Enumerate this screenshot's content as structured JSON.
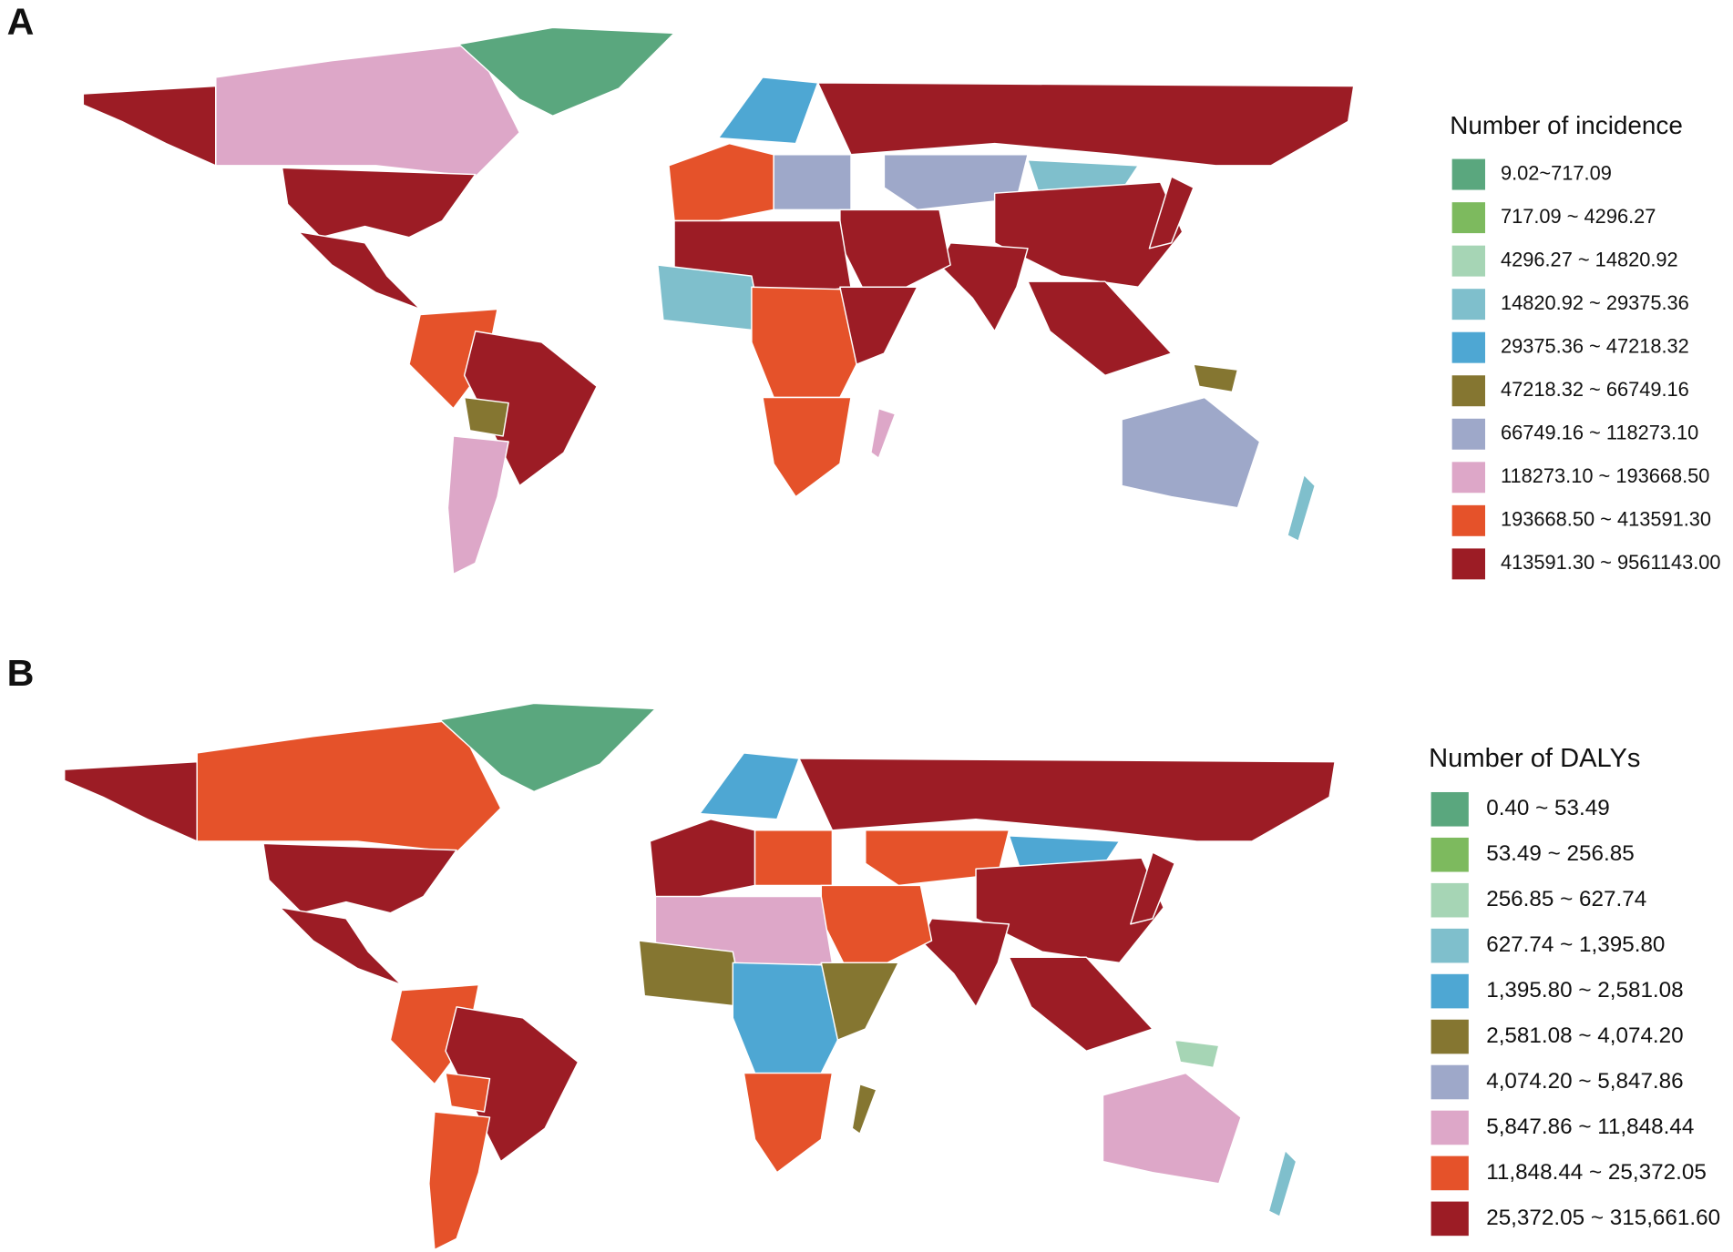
{
  "panels": [
    {
      "label": "A",
      "legend": {
        "title": "Number of incidence",
        "items": [
          {
            "label": "9.02~717.09",
            "color": "#5aa77e"
          },
          {
            "label": "717.09 ~ 4296.27",
            "color": "#7dba5e"
          },
          {
            "label": "4296.27 ~ 14820.92",
            "color": "#a6d5b5"
          },
          {
            "label": "14820.92 ~ 29375.36",
            "color": "#7fbfcc"
          },
          {
            "label": "29375.36 ~ 47218.32",
            "color": "#4ea7d3"
          },
          {
            "label": "47218.32 ~ 66749.16",
            "color": "#857631"
          },
          {
            "label": "66749.16 ~ 118273.10",
            "color": "#9ea8c9"
          },
          {
            "label": "118273.10 ~ 193668.50",
            "color": "#dda7c8"
          },
          {
            "label": "193668.50 ~ 413591.30",
            "color": "#e5522a"
          },
          {
            "label": "413591.30 ~ 9561143.00",
            "color": "#9c1c25"
          }
        ]
      }
    },
    {
      "label": "B",
      "legend": {
        "title": "Number of DALYs",
        "items": [
          {
            "label": "0.40 ~ 53.49",
            "color": "#5aa77e"
          },
          {
            "label": "53.49 ~ 256.85",
            "color": "#7dba5e"
          },
          {
            "label": "256.85 ~ 627.74",
            "color": "#a6d5b5"
          },
          {
            "label": "627.74 ~ 1,395.80",
            "color": "#7fbfcc"
          },
          {
            "label": "1,395.80 ~ 2,581.08",
            "color": "#4ea7d3"
          },
          {
            "label": "2,581.08 ~ 4,074.20",
            "color": "#857631"
          },
          {
            "label": "4,074.20 ~ 5,847.86",
            "color": "#9ea8c9"
          },
          {
            "label": "5,847.86 ~ 11,848.44",
            "color": "#dda7c8"
          },
          {
            "label": "11,848.44 ~ 25,372.05",
            "color": "#e5522a"
          },
          {
            "label": "25,372.05 ~ 315,661.60",
            "color": "#9c1c25"
          }
        ]
      }
    }
  ]
}
